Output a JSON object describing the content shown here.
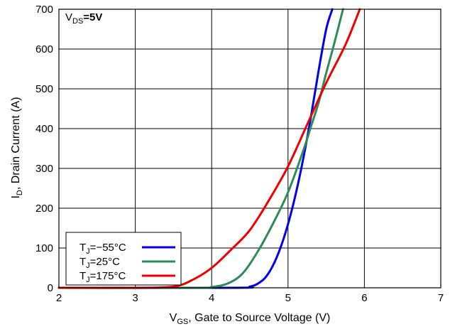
{
  "chart_data": {
    "type": "line",
    "xlabel": {
      "base": "V",
      "sub": "GS",
      "rest": ", Gate to Source Voltage (V)"
    },
    "ylabel": {
      "base": "I",
      "sub": "D",
      "rest": ", Drain Current (A)"
    },
    "xlim": [
      2,
      7
    ],
    "ylim": [
      0,
      700
    ],
    "x_ticks": [
      "2",
      "3",
      "4",
      "5",
      "6",
      "7"
    ],
    "y_ticks": [
      "0",
      "100",
      "200",
      "300",
      "400",
      "500",
      "600",
      "700"
    ],
    "grid": true,
    "legend_position": "bottom-left",
    "annotation": {
      "base": "V",
      "sub": "DS",
      "rest": "=5V"
    },
    "series": [
      {
        "name": {
          "base": "T",
          "sub": "J",
          "rest": "=−55°C"
        },
        "color": "#0000ee",
        "x": [
          4.3,
          4.5,
          4.6,
          4.7,
          4.8,
          4.9,
          5.0,
          5.1,
          5.2,
          5.3,
          5.4,
          5.5,
          5.58
        ],
        "y": [
          0,
          3,
          10,
          25,
          55,
          100,
          160,
          235,
          325,
          430,
          545,
          650,
          700
        ]
      },
      {
        "name": {
          "base": "T",
          "sub": "J",
          "rest": "=25°C"
        },
        "color": "#2e8b57",
        "x": [
          3.8,
          4.0,
          4.2,
          4.4,
          4.6,
          4.8,
          5.0,
          5.2,
          5.3,
          5.4,
          5.5,
          5.6,
          5.72
        ],
        "y": [
          0,
          2,
          10,
          35,
          90,
          160,
          240,
          345,
          405,
          465,
          540,
          610,
          700
        ]
      },
      {
        "name": {
          "base": "T",
          "sub": "J",
          "rest": "=175°C"
        },
        "color": "#ee0000",
        "x": [
          3.0,
          3.5,
          3.75,
          4.0,
          4.25,
          4.5,
          4.75,
          5.0,
          5.25,
          5.5,
          5.75,
          5.94
        ],
        "y": [
          0,
          3,
          20,
          50,
          95,
          145,
          220,
          305,
          410,
          515,
          610,
          700
        ]
      }
    ]
  }
}
